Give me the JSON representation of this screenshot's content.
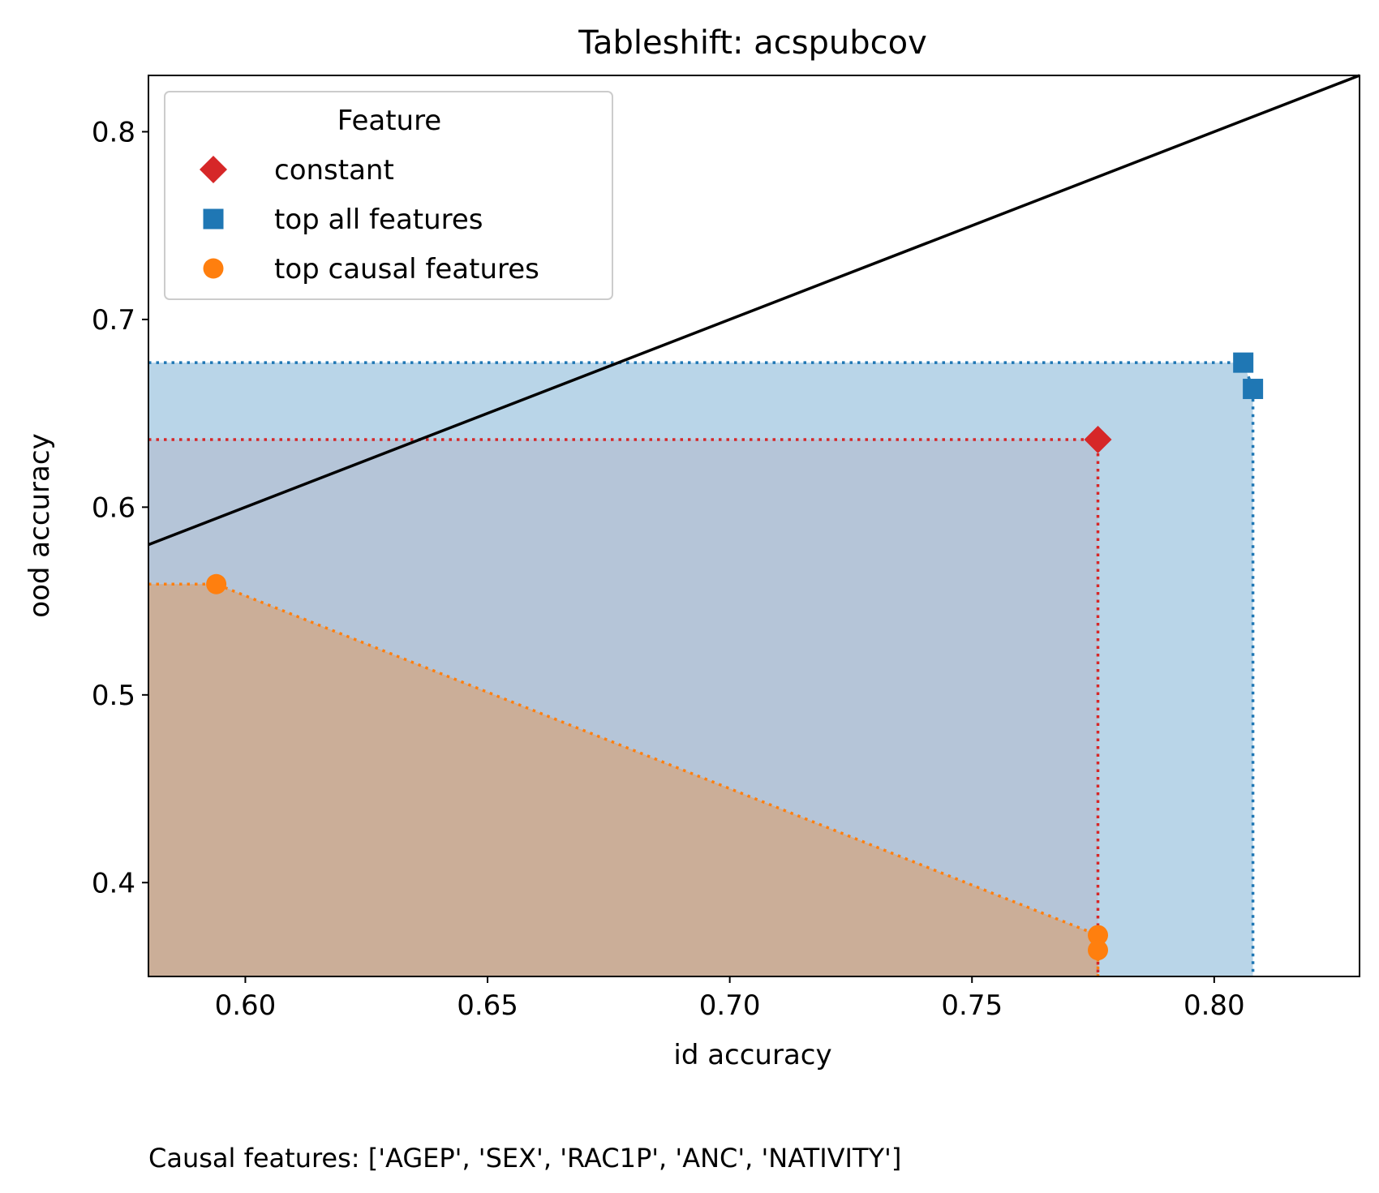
{
  "chart_data": {
    "type": "scatter",
    "title": "Tableshift: acspubcov",
    "xlabel": "id accuracy",
    "ylabel": "ood accuracy",
    "xlim": [
      0.58,
      0.83
    ],
    "ylim": [
      0.35,
      0.83
    ],
    "x_ticks": [
      0.6,
      0.65,
      0.7,
      0.75,
      0.8
    ],
    "x_tick_labels": [
      "0.60",
      "0.65",
      "0.70",
      "0.75",
      "0.80"
    ],
    "y_ticks": [
      0.4,
      0.5,
      0.6,
      0.7,
      0.8
    ],
    "y_tick_labels": [
      "0.4",
      "0.5",
      "0.6",
      "0.7",
      "0.8"
    ],
    "diagonal": {
      "from": [
        0.58,
        0.58
      ],
      "to": [
        0.83,
        0.83
      ],
      "color": "#000000"
    },
    "legend": {
      "title": "Feature",
      "placement": "upper-left",
      "entries": [
        "constant",
        "top all features",
        "top causal features"
      ]
    },
    "series": [
      {
        "name": "constant",
        "marker": "diamond",
        "color": "#d62728",
        "points": [
          [
            0.776,
            0.636
          ]
        ],
        "frontier": [
          [
            0.776,
            0.636
          ]
        ],
        "shade": null
      },
      {
        "name": "top all features",
        "marker": "square",
        "color": "#1f77b4",
        "points": [
          [
            0.806,
            0.677
          ],
          [
            0.808,
            0.663
          ]
        ],
        "frontier": [
          [
            0.806,
            0.677
          ],
          [
            0.808,
            0.663
          ]
        ],
        "shade": "#b9d5e8"
      },
      {
        "name": "top causal features",
        "marker": "circle",
        "color": "#ff7f0e",
        "points": [
          [
            0.594,
            0.559
          ],
          [
            0.776,
            0.372
          ],
          [
            0.776,
            0.364
          ]
        ],
        "frontier": [
          [
            0.594,
            0.559
          ],
          [
            0.776,
            0.372
          ]
        ],
        "shade": "#cbae98"
      }
    ],
    "constant_shade": "#b5c5d8",
    "footnote": "Causal features: ['AGEP', 'SEX', 'RAC1P', 'ANC', 'NATIVITY']"
  }
}
